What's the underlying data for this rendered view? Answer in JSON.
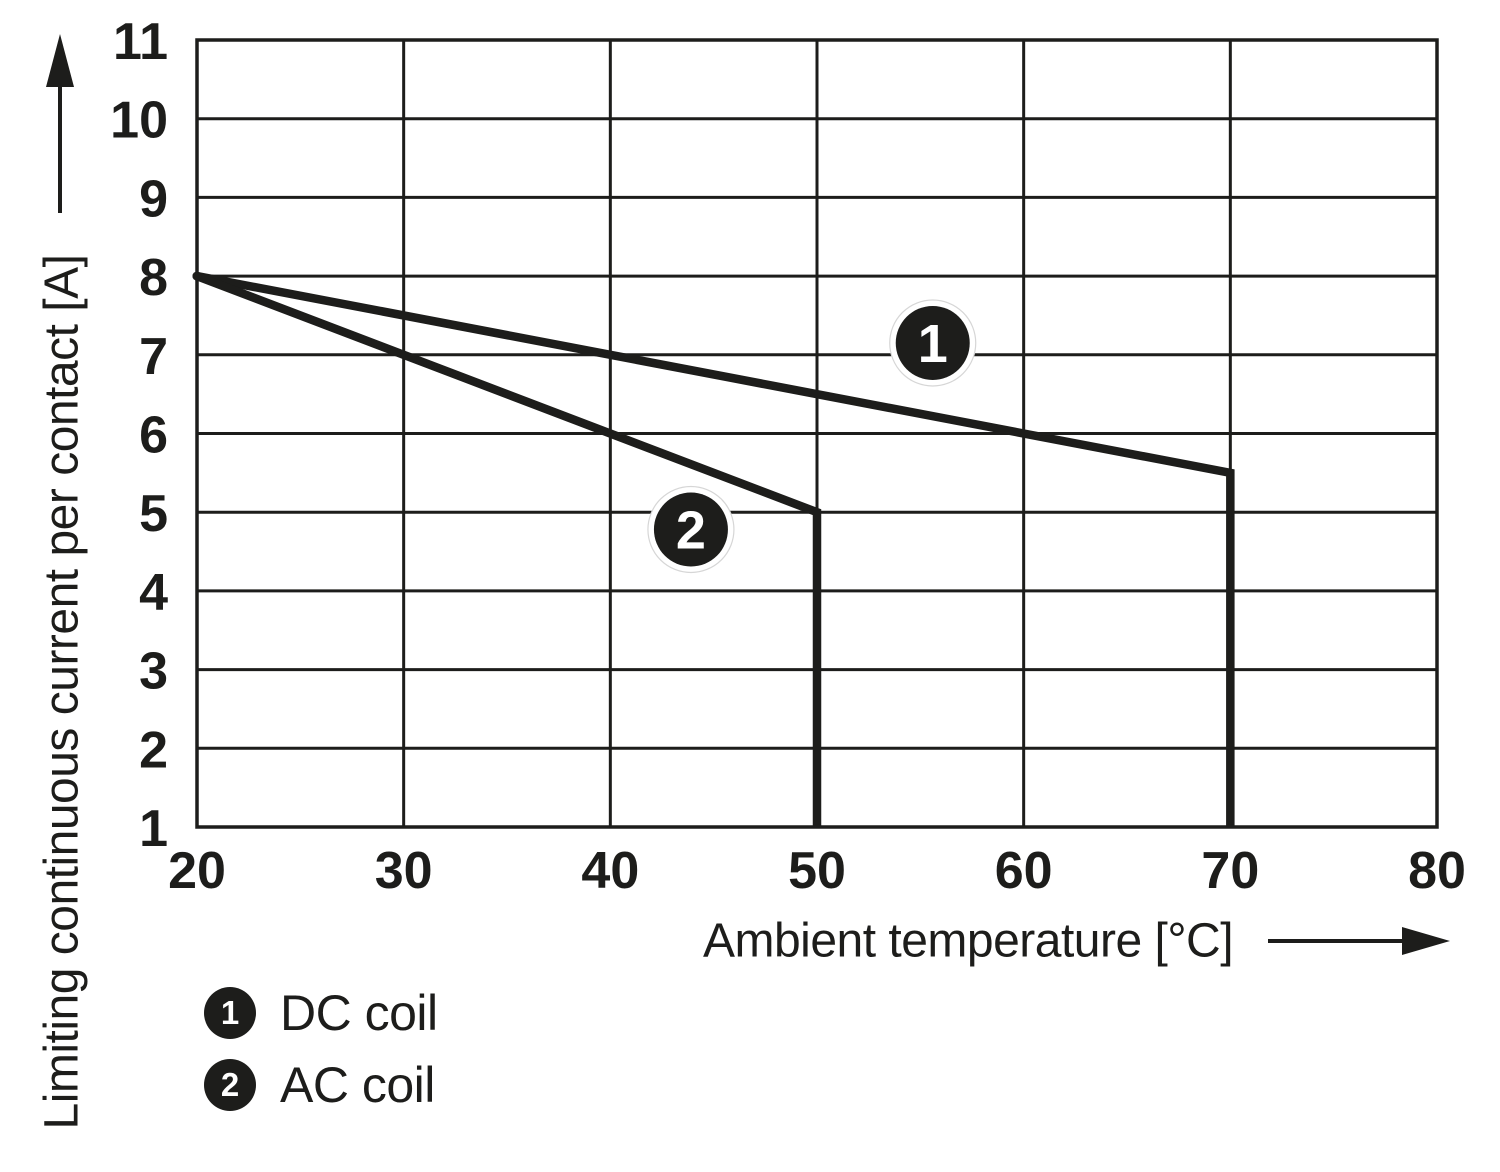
{
  "chart_data": {
    "type": "line",
    "title": "",
    "xlabel": "Ambient temperature [°C]",
    "ylabel": "Limiting continuous current per contact [A]",
    "xlim": [
      20,
      80
    ],
    "ylim": [
      1,
      11
    ],
    "xticks": [
      20,
      30,
      40,
      50,
      60,
      70,
      80
    ],
    "yticks": [
      1,
      2,
      3,
      4,
      5,
      6,
      7,
      8,
      9,
      10,
      11
    ],
    "grid": true,
    "legend_position": "below-left",
    "series": [
      {
        "marker": "1",
        "name": "DC coil",
        "points": [
          [
            20,
            8
          ],
          [
            70,
            5.5
          ],
          [
            70,
            1
          ]
        ],
        "marker_pos": [
          55.6,
          7.15
        ]
      },
      {
        "marker": "2",
        "name": "AC coil",
        "points": [
          [
            20,
            8
          ],
          [
            50,
            5
          ],
          [
            50,
            1
          ]
        ],
        "marker_pos": [
          43.9,
          4.78
        ]
      }
    ],
    "legend": [
      {
        "marker": "1",
        "label": "DC coil"
      },
      {
        "marker": "2",
        "label": "AC coil"
      }
    ],
    "colors": {
      "ink": "#1d1d1b",
      "background": "#ffffff",
      "marker_fill": "#1d1d1b",
      "marker_text": "#ffffff",
      "marker_halo": "#d6d6d6"
    }
  }
}
